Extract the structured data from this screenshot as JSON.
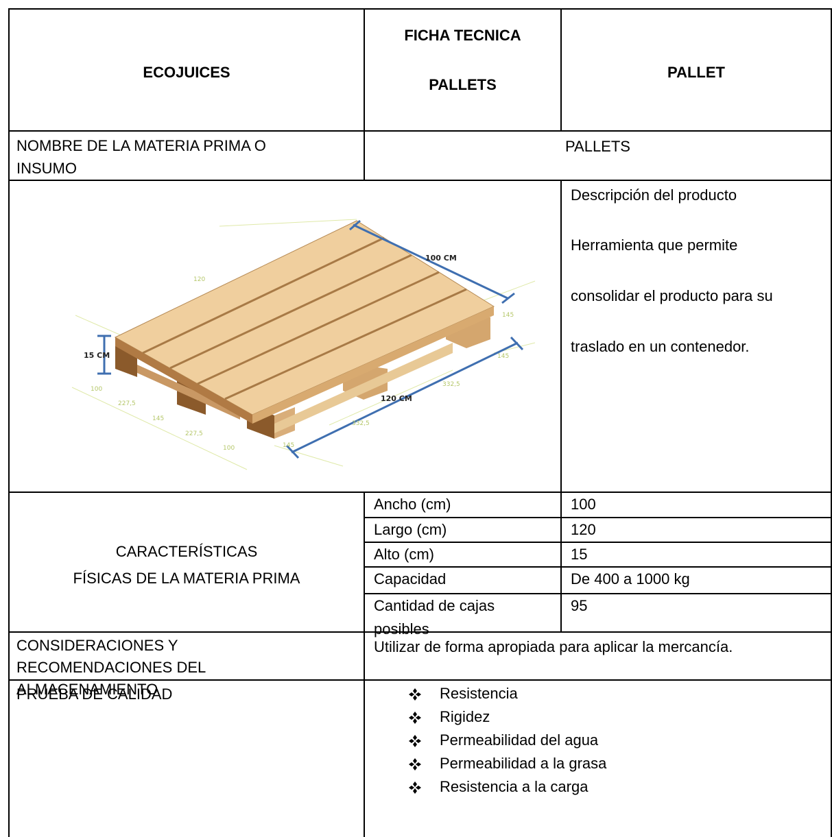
{
  "header": {
    "company": "ECOJUICES",
    "title_line1": "FICHA TECNICA",
    "title_line2": "PALLETS",
    "product": "PALLET"
  },
  "name_row": {
    "label": "NOMBRE DE LA MATERIA PRIMA O INSUMO",
    "value": "PALLETS"
  },
  "image_labels": {
    "width": "100 CM",
    "length": "120 CM",
    "height": "15 CM",
    "top": "120",
    "right1": "145",
    "right2": "145",
    "mid1": "332,5",
    "mid2": "332,5",
    "left1": "100",
    "left2": "227,5",
    "left3": "145",
    "left4": "227,5",
    "left5": "100",
    "bottom": "145"
  },
  "description": {
    "title": "Descripción del producto",
    "lines": [
      "Herramienta que permite",
      "consolidar el producto para su",
      "traslado en un contenedor."
    ]
  },
  "characteristics": {
    "label_line1": "CARACTERÍSTICAS",
    "label_line2": "FÍSICAS DE LA MATERIA PRIMA",
    "rows": [
      [
        "Ancho (cm)",
        "100"
      ],
      [
        "Largo (cm)",
        "120"
      ],
      [
        "Alto (cm)",
        "15"
      ],
      [
        "Capacidad",
        "De 400 a 1000 kg"
      ],
      [
        "Cantidad de cajas posibles",
        "95"
      ]
    ]
  },
  "storage": {
    "label": "CONSIDERACIONES Y RECOMENDACIONES DEL ALMACENAMIENTO",
    "value": "Utilizar de forma apropiada para aplicar la mercancía."
  },
  "quality": {
    "label": "PRUEBA DE CALIDAD",
    "items": [
      "Resistencia",
      "Rigidez",
      "Permeabilidad del agua",
      "Permeabilidad a la grasa",
      "Resistencia a la carga"
    ]
  }
}
